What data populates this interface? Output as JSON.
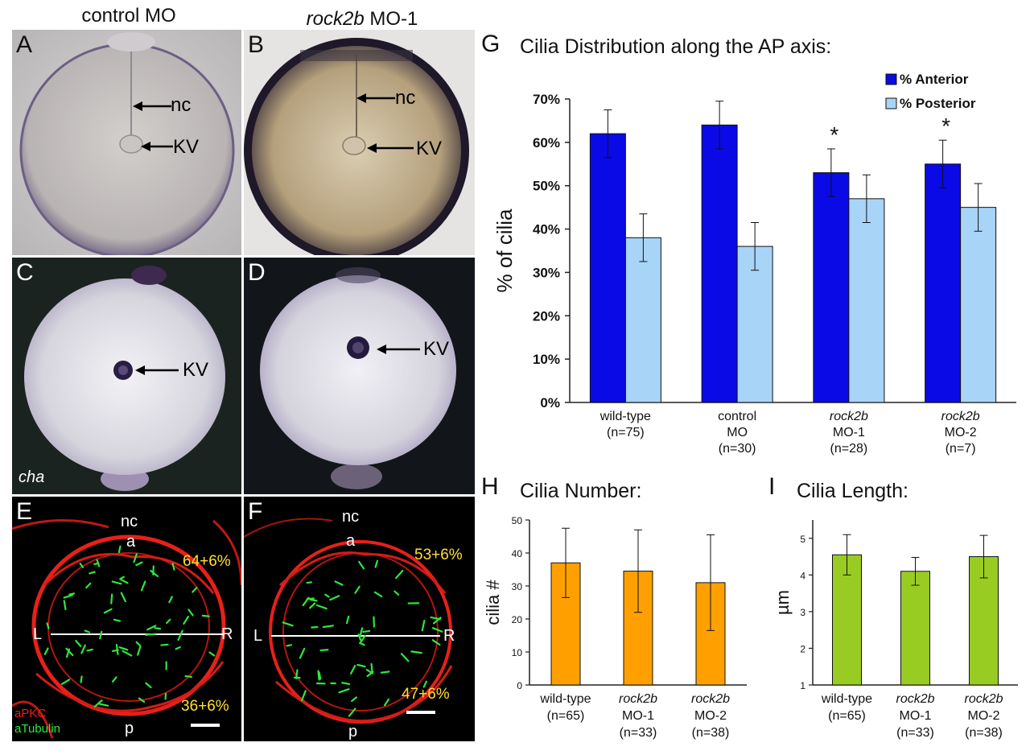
{
  "column_titles": {
    "left": "control MO",
    "right_italic": "rock2b",
    "right_rest": " MO-1"
  },
  "panels": {
    "A": {
      "letter": "A",
      "labels": [
        "nc",
        "KV"
      ]
    },
    "B": {
      "letter": "B",
      "labels": [
        "nc",
        "KV"
      ]
    },
    "C": {
      "letter": "C",
      "labels": [
        "KV"
      ],
      "gene": "cha"
    },
    "D": {
      "letter": "D",
      "labels": [
        "KV"
      ]
    },
    "E": {
      "letter": "E",
      "top": "nc",
      "a": "a",
      "p": "p",
      "L": "L",
      "R": "R",
      "pct_top": "64+6%",
      "pct_bottom": "36+6%",
      "legend_red": "aPKC",
      "legend_green": "aTubulin"
    },
    "F": {
      "letter": "F",
      "top": "nc",
      "a": "a",
      "p": "p",
      "L": "L",
      "R": "R",
      "pct_top": "53+6%",
      "pct_bottom": "47+6%"
    }
  },
  "colors": {
    "anterior": "#0a0ae6",
    "posterior": "#a8d4f7",
    "number": "#ffa000",
    "length": "#99cc22",
    "confocal_red": "#e8201a",
    "confocal_green": "#2ee83a",
    "pct_yellow": "#ffe033"
  },
  "chart_data": [
    {
      "id": "G",
      "type": "bar",
      "title": "Cilia Distribution along the AP axis:",
      "panel_letter": "G",
      "ylabel": "% of cilia",
      "ylim": [
        0,
        70
      ],
      "yticks": [
        "0%",
        "10%",
        "20%",
        "30%",
        "40%",
        "50%",
        "60%",
        "70%"
      ],
      "categories": [
        {
          "italic": "",
          "lines": [
            "wild-type",
            "(n=75)"
          ]
        },
        {
          "italic": "",
          "lines": [
            "control",
            "MO",
            "(n=30)"
          ]
        },
        {
          "italic": "rock2b",
          "lines": [
            "MO-1",
            "(n=28)"
          ]
        },
        {
          "italic": "rock2b",
          "lines": [
            "MO-2",
            "(n=7)"
          ]
        }
      ],
      "series": [
        {
          "name": "% Anterior",
          "values": [
            62,
            64,
            53,
            55
          ],
          "errors": [
            5.5,
            5.5,
            5.5,
            5.5
          ]
        },
        {
          "name": "% Posterior",
          "values": [
            38,
            36,
            47,
            45
          ],
          "errors": [
            5.5,
            5.5,
            5.5,
            5.5
          ]
        }
      ],
      "significance": [
        "",
        "",
        "*",
        "*"
      ],
      "legend_position": "top-right"
    },
    {
      "id": "H",
      "type": "bar",
      "title": "Cilia Number:",
      "panel_letter": "H",
      "ylabel": "cilia #",
      "ylim": [
        0,
        50
      ],
      "yticks": [
        "0",
        "10",
        "20",
        "30",
        "40",
        "50"
      ],
      "categories": [
        {
          "italic": "",
          "lines": [
            "wild-type",
            "(n=65)"
          ]
        },
        {
          "italic": "rock2b",
          "lines": [
            "MO-1",
            "(n=33)"
          ]
        },
        {
          "italic": "rock2b",
          "lines": [
            "MO-2",
            "(n=38)"
          ]
        }
      ],
      "values": [
        37,
        34.5,
        31
      ],
      "errors": [
        10.5,
        12.5,
        14.5
      ]
    },
    {
      "id": "I",
      "type": "bar",
      "title": "Cilia Length:",
      "panel_letter": "I",
      "ylabel": "µm",
      "ylim": [
        1,
        5.5
      ],
      "yticks": [
        "1",
        "2",
        "3",
        "4",
        "5"
      ],
      "categories": [
        {
          "italic": "",
          "lines": [
            "wild-type",
            "(n=65)"
          ]
        },
        {
          "italic": "rock2b",
          "lines": [
            "MO-1",
            "(n=33)"
          ]
        },
        {
          "italic": "rock2b",
          "lines": [
            "MO-2",
            "(n=38)"
          ]
        }
      ],
      "values": [
        4.55,
        4.1,
        4.5
      ],
      "errors": [
        0.55,
        0.38,
        0.58
      ]
    }
  ]
}
